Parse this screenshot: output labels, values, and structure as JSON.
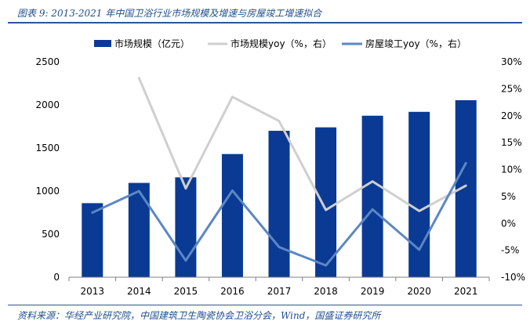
{
  "figure": {
    "title": "图表 9:  2013-2021 年中国卫浴行业市场规模及增速与房屋竣工增速拟合",
    "source": "资料来源：华经产业研究院，中国建筑卫生陶瓷协会卫浴分会，Wind，国盛证券研究所"
  },
  "chart_data": {
    "type": "bar",
    "categories": [
      "2013",
      "2014",
      "2015",
      "2016",
      "2017",
      "2018",
      "2019",
      "2020",
      "2021"
    ],
    "series": [
      {
        "name": "市场规模（亿元）",
        "type": "bar",
        "axis": "left",
        "color": "#0a3a94",
        "values": [
          860,
          1095,
          1160,
          1430,
          1700,
          1740,
          1875,
          1920,
          2055
        ]
      },
      {
        "name": "市场规模yoy（%，右）",
        "type": "line",
        "axis": "right",
        "color": "#cfcfcf",
        "values": [
          null,
          27.0,
          6.5,
          23.5,
          19.0,
          2.5,
          7.8,
          2.3,
          7.0
        ]
      },
      {
        "name": "房屋竣工yoy（%，右）",
        "type": "line",
        "axis": "right",
        "color": "#5b87c4",
        "values": [
          2.0,
          6.0,
          -6.9,
          6.1,
          -4.4,
          -7.8,
          2.6,
          -4.9,
          11.2
        ]
      }
    ],
    "left_axis": {
      "min": 0,
      "max": 2500,
      "ticks": [
        "0",
        "500",
        "1000",
        "1500",
        "2000",
        "2500"
      ]
    },
    "right_axis": {
      "min": -10,
      "max": 30,
      "ticks": [
        "-10%",
        "-5%",
        "0%",
        "5%",
        "10%",
        "15%",
        "20%",
        "25%",
        "30%"
      ]
    },
    "grid": false,
    "legend_position": "top"
  }
}
